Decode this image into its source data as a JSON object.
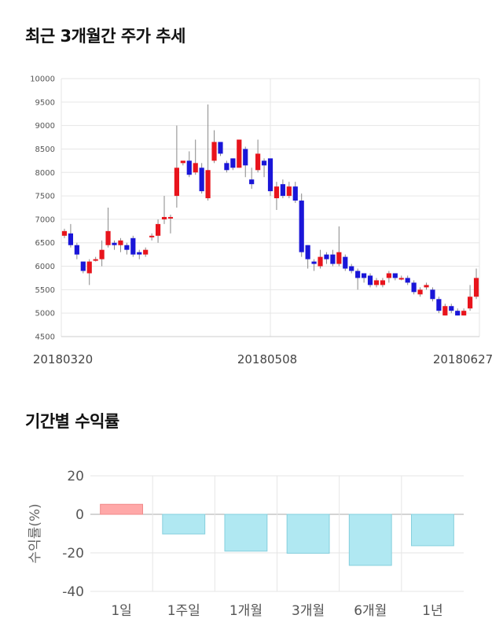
{
  "titles": {
    "price_trend": "최근 3개월간 주가 추세",
    "returns": "기간별 수익률"
  },
  "chart_data": [
    {
      "type": "candlestick",
      "ylim": [
        4500,
        10000
      ],
      "yticks": [
        4500,
        5000,
        5500,
        6000,
        6500,
        7000,
        7500,
        8000,
        8500,
        9000,
        9500,
        10000
      ],
      "x_tick_labels": [
        "20180320",
        "20180508",
        "20180627"
      ],
      "colors": {
        "up": "#e8141c",
        "down": "#1a16d8",
        "wick": "#888888",
        "grid": "#e6e6e6"
      },
      "candles": [
        [
          6650,
          6750,
          6800,
          6600
        ],
        [
          6700,
          6450,
          6900,
          6400
        ],
        [
          6450,
          6250,
          6500,
          6150
        ],
        [
          6100,
          5900,
          6100,
          5850
        ],
        [
          5850,
          6100,
          6150,
          5600
        ],
        [
          6150,
          6150,
          6200,
          6100
        ],
        [
          6150,
          6350,
          6550,
          6000
        ],
        [
          6450,
          6750,
          7250,
          6400
        ],
        [
          6500,
          6450,
          6550,
          6350
        ],
        [
          6450,
          6550,
          6600,
          6300
        ],
        [
          6450,
          6350,
          6500,
          6250
        ],
        [
          6600,
          6250,
          6650,
          6200
        ],
        [
          6300,
          6250,
          6350,
          6150
        ],
        [
          6250,
          6350,
          6400,
          6200
        ],
        [
          6650,
          6650,
          6700,
          6550
        ],
        [
          6650,
          6900,
          7000,
          6500
        ],
        [
          7000,
          7050,
          7500,
          6900
        ],
        [
          7050,
          7050,
          7100,
          6700
        ],
        [
          7500,
          8100,
          9000,
          7250
        ],
        [
          8200,
          8250,
          8250,
          8150
        ],
        [
          8250,
          7950,
          8450,
          7900
        ],
        [
          8000,
          8200,
          8700,
          7950
        ],
        [
          8100,
          7600,
          8200,
          7550
        ],
        [
          7450,
          8050,
          9450,
          7400
        ],
        [
          8250,
          8650,
          8900,
          8200
        ],
        [
          8650,
          8400,
          8650,
          8350
        ],
        [
          8200,
          8050,
          8250,
          8000
        ],
        [
          8300,
          8100,
          8300,
          8050
        ],
        [
          8100,
          8700,
          8700,
          8100
        ],
        [
          8500,
          8150,
          8550,
          7900
        ],
        [
          7850,
          7750,
          8100,
          7650
        ],
        [
          8050,
          8400,
          8700,
          8000
        ],
        [
          8250,
          8150,
          8300,
          7900
        ],
        [
          8300,
          7600,
          8300,
          7500
        ],
        [
          7450,
          7700,
          7800,
          7200
        ],
        [
          7750,
          7500,
          7850,
          7450
        ],
        [
          7500,
          7700,
          7800,
          7450
        ],
        [
          7700,
          7400,
          7800,
          7350
        ],
        [
          7400,
          6300,
          7550,
          6200
        ],
        [
          6450,
          6150,
          6450,
          5950
        ],
        [
          6100,
          6050,
          6150,
          5900
        ],
        [
          6000,
          6200,
          6350,
          5950
        ],
        [
          6250,
          6150,
          6300,
          6050
        ],
        [
          6250,
          6050,
          6350,
          6000
        ],
        [
          6050,
          6300,
          6850,
          6000
        ],
        [
          6200,
          5950,
          6250,
          5900
        ],
        [
          6000,
          5900,
          6050,
          5850
        ],
        [
          5900,
          5750,
          5950,
          5500
        ],
        [
          5850,
          5750,
          5850,
          5650
        ],
        [
          5800,
          5600,
          5850,
          5550
        ],
        [
          5600,
          5700,
          5750,
          5550
        ],
        [
          5600,
          5700,
          5750,
          5550
        ],
        [
          5750,
          5850,
          5900,
          5650
        ],
        [
          5850,
          5750,
          5850,
          5700
        ],
        [
          5750,
          5750,
          5800,
          5700
        ],
        [
          5750,
          5650,
          5800,
          5600
        ],
        [
          5650,
          5450,
          5700,
          5400
        ],
        [
          5400,
          5500,
          5550,
          5350
        ],
        [
          5550,
          5600,
          5650,
          5500
        ],
        [
          5500,
          5300,
          5550,
          5250
        ],
        [
          5300,
          5050,
          5350,
          5000
        ],
        [
          4950,
          5150,
          5200,
          4950
        ],
        [
          5150,
          5050,
          5200,
          5000
        ],
        [
          5050,
          4950,
          5100,
          4950
        ],
        [
          4950,
          5050,
          5100,
          4950
        ],
        [
          5100,
          5350,
          5600,
          5050
        ],
        [
          5350,
          5750,
          5950,
          5300
        ]
      ]
    },
    {
      "type": "bar",
      "categories": [
        "1일",
        "1주일",
        "1개월",
        "3개월",
        "6개월",
        "1년"
      ],
      "values": [
        5.2,
        -10.2,
        -19.1,
        -20.2,
        -26.5,
        -16.3
      ],
      "ylim": [
        -40,
        20
      ],
      "yticks": [
        20,
        0,
        -20,
        -40
      ],
      "ylabel": "수익률(%)",
      "colors": {
        "positive_fill": "#ffa8a8",
        "positive_stroke": "#f08a8a",
        "negative_fill": "#b0e8f2",
        "negative_stroke": "#85cfdd",
        "grid": "#e6e6e6",
        "zero": "#aaaaaa"
      }
    }
  ]
}
